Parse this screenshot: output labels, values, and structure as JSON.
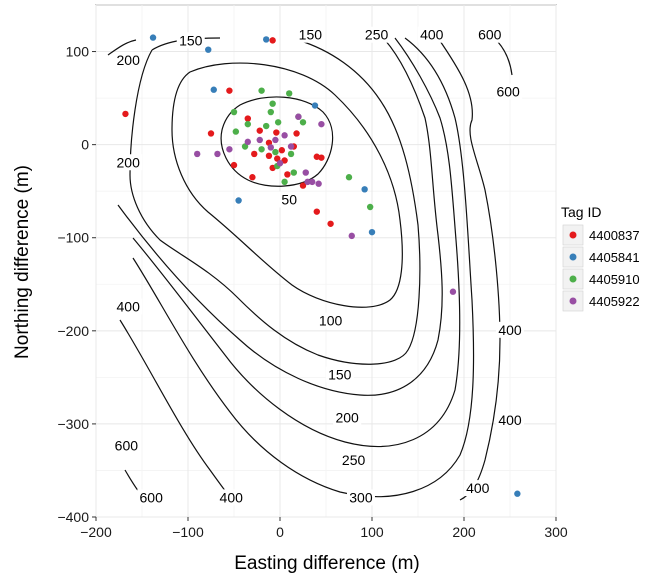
{
  "chart_data": {
    "type": "scatter",
    "xlabel": "Easting difference (m)",
    "ylabel": "Northing difference (m)",
    "xlim": [
      -200,
      300
    ],
    "ylim": [
      -400,
      150
    ],
    "x_ticks": [
      -200,
      -100,
      0,
      100,
      200,
      300
    ],
    "y_ticks": [
      -400,
      -300,
      -200,
      -100,
      0,
      100
    ],
    "grid": true,
    "legend": {
      "title": "Tag ID",
      "position": "right"
    },
    "contour_levels": [
      50,
      100,
      150,
      200,
      250,
      300,
      400,
      600
    ],
    "contour_labels": [
      {
        "text": "50",
        "x": 10,
        "y": -60
      },
      {
        "text": "100",
        "x": 55,
        "y": -190
      },
      {
        "text": "150",
        "x": 65,
        "y": -248
      },
      {
        "text": "200",
        "x": 73,
        "y": -294
      },
      {
        "text": "250",
        "x": 80,
        "y": -340
      },
      {
        "text": "300",
        "x": 88,
        "y": -380
      },
      {
        "text": "400",
        "x": -53,
        "y": -380
      },
      {
        "text": "400",
        "x": -165,
        "y": -175
      },
      {
        "text": "400",
        "x": 215,
        "y": -370
      },
      {
        "text": "400",
        "x": 250,
        "y": -297
      },
      {
        "text": "400",
        "x": 250,
        "y": -200
      },
      {
        "text": "600",
        "x": -167,
        "y": -324
      },
      {
        "text": "600",
        "x": -140,
        "y": -380
      },
      {
        "text": "150",
        "x": -97,
        "y": 111
      },
      {
        "text": "150",
        "x": 33,
        "y": 117
      },
      {
        "text": "250",
        "x": 105,
        "y": 117
      },
      {
        "text": "400",
        "x": 165,
        "y": 117
      },
      {
        "text": "600",
        "x": 228,
        "y": 117
      },
      {
        "text": "600",
        "x": 248,
        "y": 56
      },
      {
        "text": "200",
        "x": -165,
        "y": 90
      },
      {
        "text": "200",
        "x": -165,
        "y": -20
      }
    ],
    "series": [
      {
        "name": "4400837",
        "color": "#e41a1c",
        "points": [
          [
            -168,
            33
          ],
          [
            -55,
            58
          ],
          [
            -75,
            12
          ],
          [
            -8,
            112
          ],
          [
            -50,
            -22
          ],
          [
            -35,
            28
          ],
          [
            -22,
            15
          ],
          [
            -12,
            2
          ],
          [
            -4,
            13
          ],
          [
            2,
            -6
          ],
          [
            5,
            -17
          ],
          [
            -8,
            -25
          ],
          [
            -28,
            -10
          ],
          [
            -12,
            -12
          ],
          [
            15,
            -2
          ],
          [
            18,
            12
          ],
          [
            40,
            -13
          ],
          [
            45,
            -14
          ],
          [
            25,
            -44
          ],
          [
            40,
            -72
          ],
          [
            55,
            -85
          ],
          [
            -30,
            -35
          ],
          [
            -3,
            -15
          ],
          [
            8,
            -32
          ]
        ]
      },
      {
        "name": "4405841",
        "color": "#377eb8",
        "points": [
          [
            -138,
            115
          ],
          [
            -78,
            102
          ],
          [
            -72,
            59
          ],
          [
            -15,
            113
          ],
          [
            38,
            42
          ],
          [
            -45,
            -60
          ],
          [
            92,
            -48
          ],
          [
            100,
            -94
          ],
          [
            258,
            -375
          ]
        ]
      },
      {
        "name": "4405910",
        "color": "#4daf4a",
        "points": [
          [
            -50,
            35
          ],
          [
            -20,
            58
          ],
          [
            -8,
            44
          ],
          [
            -2,
            24
          ],
          [
            -15,
            20
          ],
          [
            -35,
            22
          ],
          [
            -48,
            14
          ],
          [
            -38,
            -2
          ],
          [
            -20,
            -5
          ],
          [
            -5,
            -8
          ],
          [
            10,
            55
          ],
          [
            25,
            24
          ],
          [
            -10,
            35
          ],
          [
            12,
            -10
          ],
          [
            -3,
            -23
          ],
          [
            5,
            -40
          ],
          [
            15,
            -30
          ],
          [
            75,
            -35
          ],
          [
            98,
            -67
          ],
          [
            20,
            30
          ]
        ]
      },
      {
        "name": "4405922",
        "color": "#984ea3",
        "points": [
          [
            -90,
            -10
          ],
          [
            -68,
            -10
          ],
          [
            -55,
            -5
          ],
          [
            -35,
            3
          ],
          [
            -22,
            5
          ],
          [
            -5,
            5
          ],
          [
            5,
            10
          ],
          [
            20,
            30
          ],
          [
            45,
            22
          ],
          [
            -10,
            -3
          ],
          [
            0,
            -20
          ],
          [
            28,
            -30
          ],
          [
            30,
            -40
          ],
          [
            35,
            -40
          ],
          [
            42,
            -42
          ],
          [
            78,
            -98
          ],
          [
            188,
            -158
          ],
          [
            12,
            -2
          ]
        ]
      }
    ]
  }
}
